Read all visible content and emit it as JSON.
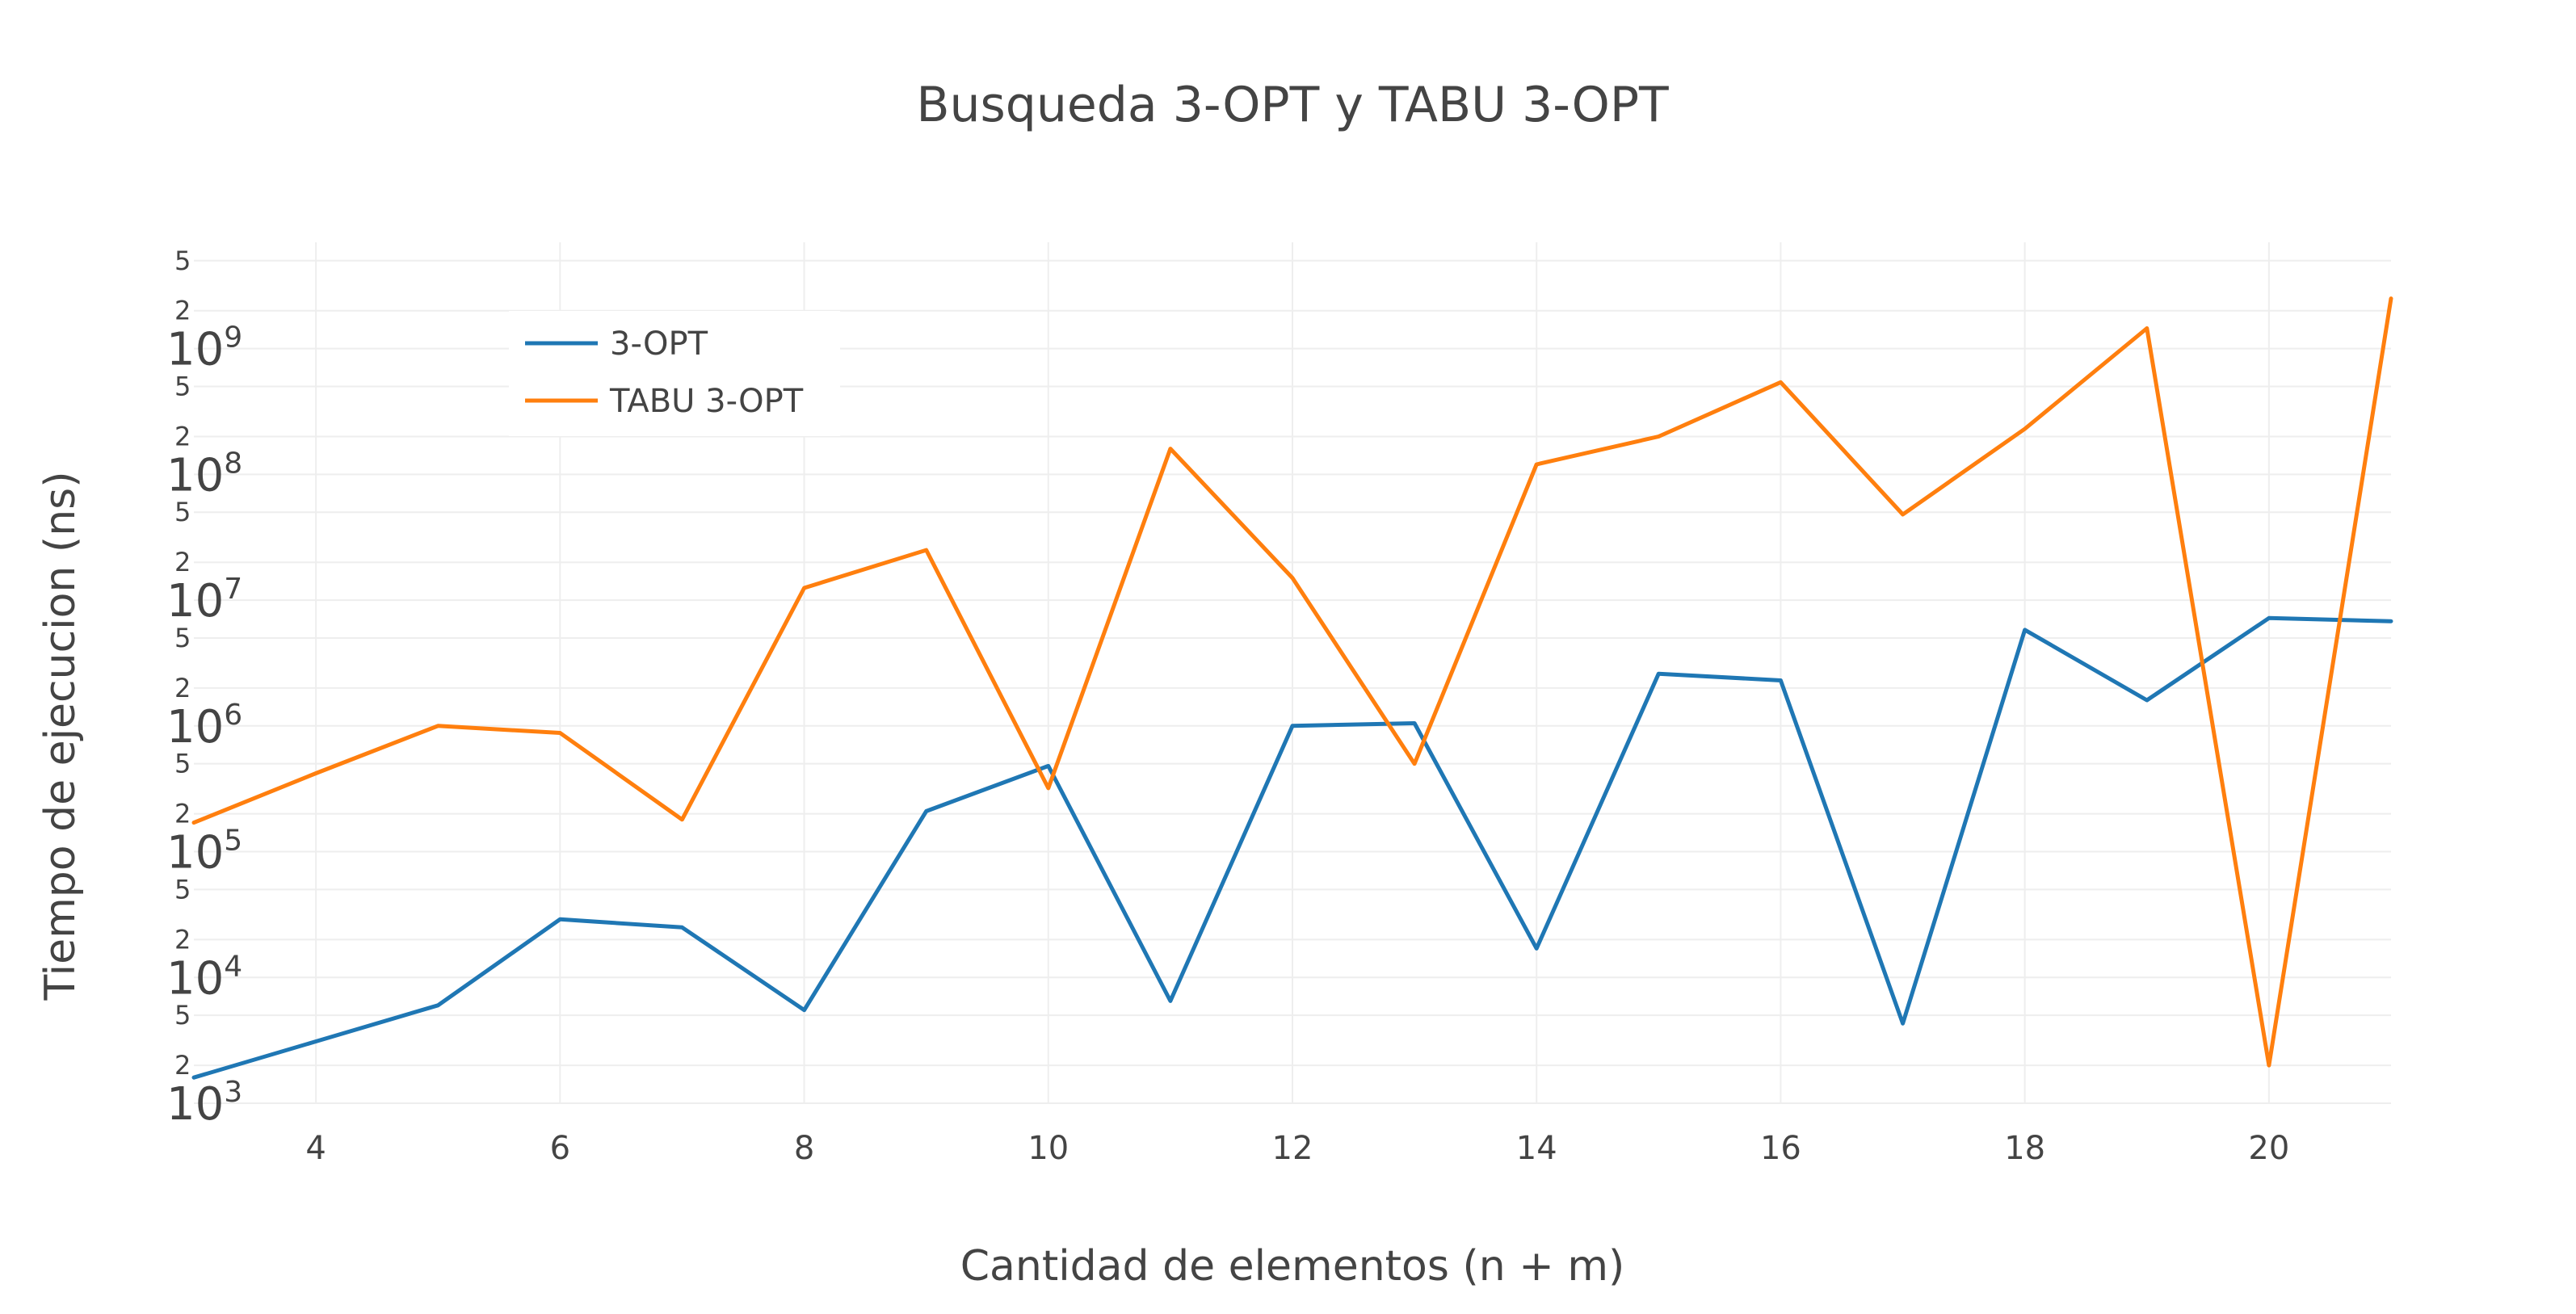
{
  "chart_data": {
    "type": "line",
    "title": "Busqueda 3-OPT y TABU 3-OPT",
    "xlabel": "Cantidad de elementos (n + m)",
    "ylabel": "Tiempo de ejecucion (ns)",
    "x": [
      3,
      4,
      5,
      6,
      7,
      8,
      9,
      10,
      11,
      12,
      13,
      14,
      15,
      16,
      17,
      18,
      19,
      20,
      21
    ],
    "xlim": [
      3,
      21
    ],
    "x_ticks": [
      4,
      6,
      8,
      10,
      12,
      14,
      16,
      18,
      20
    ],
    "y_scale": "log",
    "ylim": [
      1000,
      7000000000
    ],
    "y_major_ticks": [
      {
        "value": 1000,
        "base": "10",
        "exp": "3"
      },
      {
        "value": 10000,
        "base": "10",
        "exp": "4"
      },
      {
        "value": 100000,
        "base": "10",
        "exp": "5"
      },
      {
        "value": 1000000,
        "base": "10",
        "exp": "6"
      },
      {
        "value": 10000000,
        "base": "10",
        "exp": "7"
      },
      {
        "value": 100000000,
        "base": "10",
        "exp": "8"
      },
      {
        "value": 1000000000,
        "base": "10",
        "exp": "9"
      }
    ],
    "y_minor_ticks": [
      {
        "value": 2000,
        "label": "2"
      },
      {
        "value": 5000,
        "label": "5"
      },
      {
        "value": 20000,
        "label": "2"
      },
      {
        "value": 50000,
        "label": "5"
      },
      {
        "value": 200000,
        "label": "2"
      },
      {
        "value": 500000,
        "label": "5"
      },
      {
        "value": 2000000,
        "label": "2"
      },
      {
        "value": 5000000,
        "label": "5"
      },
      {
        "value": 20000000,
        "label": "2"
      },
      {
        "value": 50000000,
        "label": "5"
      },
      {
        "value": 200000000,
        "label": "2"
      },
      {
        "value": 500000000,
        "label": "5"
      },
      {
        "value": 2000000000,
        "label": "2"
      },
      {
        "value": 5000000000,
        "label": "5"
      }
    ],
    "grid": true,
    "legend_position": "top-left",
    "series": [
      {
        "name": "3-OPT",
        "color": "#1f77b4",
        "values": [
          1600,
          3100,
          6000,
          29000,
          25000,
          5500,
          210000,
          480000,
          6500,
          1000000,
          1050000,
          17000,
          2600000,
          2300000,
          4300,
          5800000,
          1600000,
          7200000,
          6800000
        ]
      },
      {
        "name": "TABU 3-OPT",
        "color": "#ff7f0e",
        "values": [
          170000,
          420000,
          1000000,
          880000,
          180000,
          12500000,
          25000000,
          320000,
          160000000,
          15000000,
          500000,
          120000000,
          200000000,
          540000000,
          48000000,
          230000000,
          1450000000,
          2000,
          2500000000
        ]
      }
    ]
  }
}
